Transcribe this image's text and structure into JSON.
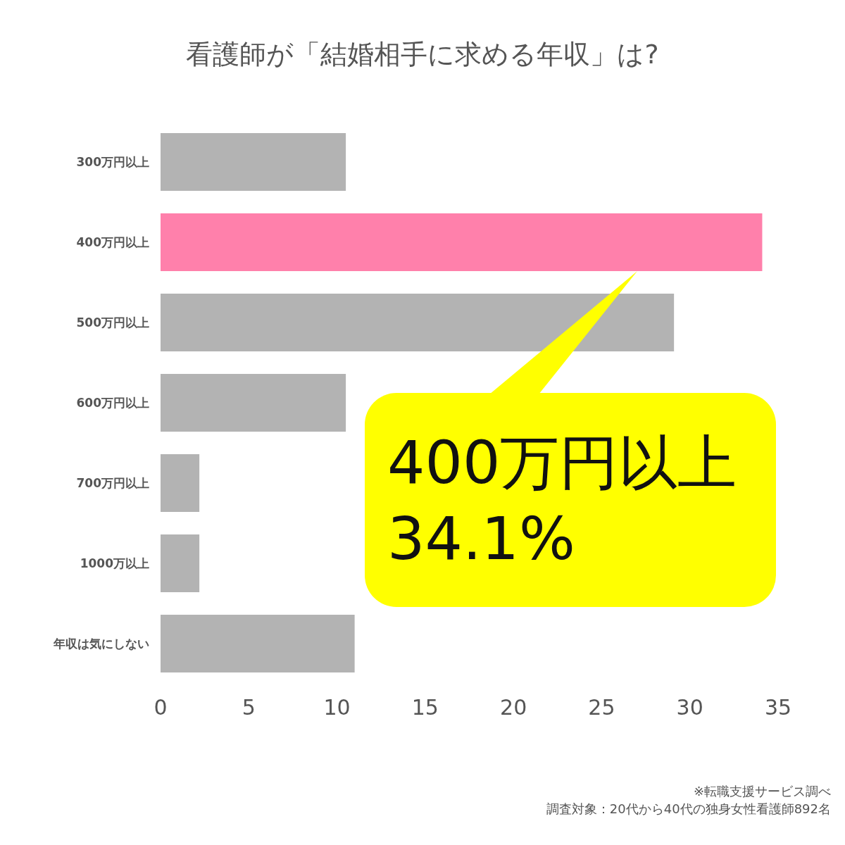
{
  "chart_data": {
    "type": "bar",
    "orientation": "horizontal",
    "title": "看護師が「結婚相手に求める年収」は?",
    "categories": [
      "300万円以上",
      "400万円以上",
      "500万円以上",
      "600万円以上",
      "700万円以上",
      "1000万以上",
      "年収は気にしない"
    ],
    "values": [
      10.5,
      34.1,
      29.1,
      10.5,
      2.2,
      2.2,
      11.0
    ],
    "colors": [
      "#b3b3b3",
      "#ff80ab",
      "#b3b3b3",
      "#b3b3b3",
      "#b3b3b3",
      "#b3b3b3",
      "#b3b3b3"
    ],
    "xlim": [
      0,
      35
    ],
    "xticks": [
      0,
      5,
      10,
      15,
      20,
      25,
      30,
      35
    ],
    "grid": false,
    "annotations": [
      "400万円以上\n34.1%",
      "※転職支援サービス調べ",
      "調査対象：20代から40代の独身女性看護師892名"
    ]
  }
}
